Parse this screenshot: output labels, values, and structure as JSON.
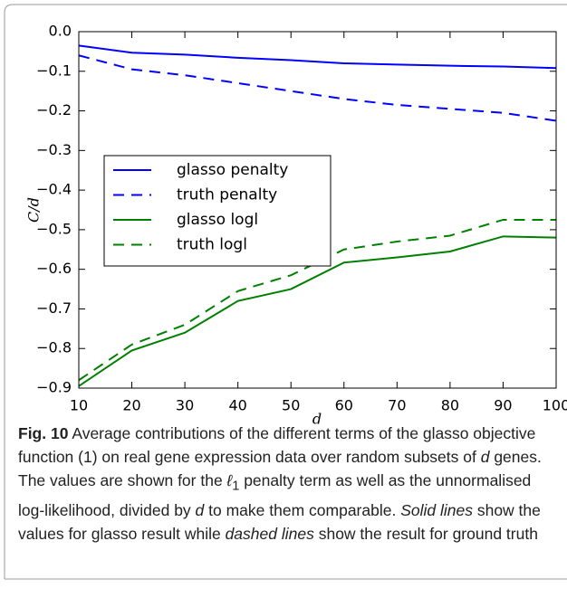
{
  "chart_data": {
    "type": "line",
    "xlabel": "d",
    "ylabel": "C/d",
    "x": [
      10,
      20,
      30,
      40,
      50,
      60,
      70,
      80,
      90,
      100
    ],
    "series": [
      {
        "name": "glasso penalty",
        "color": "#0000ff",
        "style": "solid",
        "values": [
          -0.035,
          -0.053,
          -0.058,
          -0.066,
          -0.072,
          -0.08,
          -0.083,
          -0.086,
          -0.088,
          -0.092
        ]
      },
      {
        "name": "truth penalty",
        "color": "#0000ff",
        "style": "dashed",
        "values": [
          -0.06,
          -0.095,
          -0.11,
          -0.13,
          -0.15,
          -0.17,
          -0.185,
          -0.195,
          -0.205,
          -0.225
        ]
      },
      {
        "name": "glasso logl",
        "color": "#008000",
        "style": "solid",
        "values": [
          -0.895,
          -0.805,
          -0.76,
          -0.68,
          -0.65,
          -0.583,
          -0.57,
          -0.555,
          -0.517,
          -0.52
        ]
      },
      {
        "name": "truth logl",
        "color": "#008000",
        "style": "dashed",
        "values": [
          -0.88,
          -0.79,
          -0.74,
          -0.655,
          -0.615,
          -0.55,
          -0.53,
          -0.515,
          -0.475,
          -0.475
        ]
      }
    ],
    "xlim": [
      10,
      100
    ],
    "xticks": [
      10,
      20,
      30,
      40,
      50,
      60,
      70,
      80,
      90,
      100
    ],
    "ylim": [
      -0.9,
      0.0
    ],
    "yticks": [
      {
        "value": -0.9,
        "label": "−0.9"
      },
      {
        "value": -0.8,
        "label": "−0.8"
      },
      {
        "value": -0.7,
        "label": "−0.7"
      },
      {
        "value": -0.6,
        "label": "−0.6"
      },
      {
        "value": -0.5,
        "label": "−0.5"
      },
      {
        "value": -0.4,
        "label": "−0.4"
      },
      {
        "value": -0.3,
        "label": "−0.3"
      },
      {
        "value": -0.2,
        "label": "−0.2"
      },
      {
        "value": -0.1,
        "label": "−0.1"
      },
      {
        "value": 0.0,
        "label": "0.0"
      }
    ],
    "legend": "center left",
    "grid": false
  },
  "caption": {
    "label": "Fig. 10",
    "parts": [
      "Average contributions of the different terms of the glasso objective function (1) on real gene expression data over random subsets of ",
      "d",
      " genes. The values are shown for the ",
      "ℓ",
      "1",
      " penalty term as well as the unnormalised log-likelihood, divided by ",
      "d",
      " to make them comparable. ",
      "Solid lines",
      " show the values for glasso result while ",
      "dashed lines",
      " show the result for ground truth"
    ]
  }
}
